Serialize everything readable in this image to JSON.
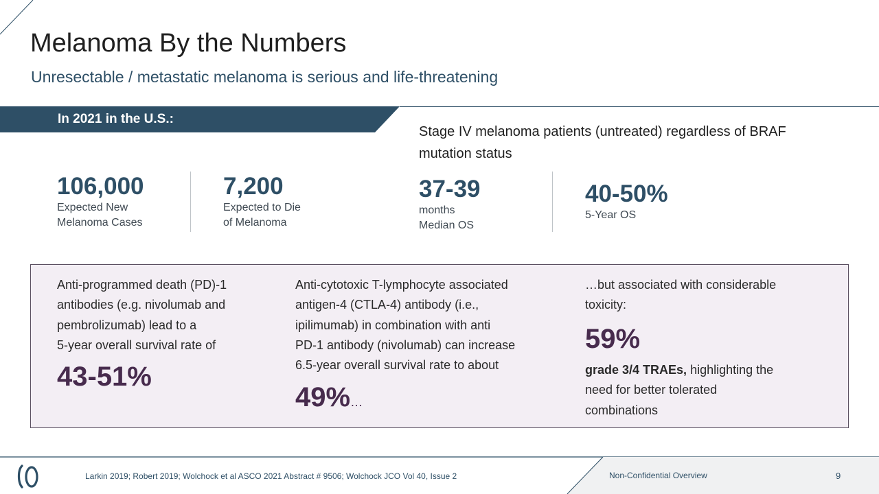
{
  "header": {
    "title": "Melanoma By the Numbers",
    "subtitle": "Unresectable / metastatic melanoma is serious and life-threatening"
  },
  "banner": {
    "label": "In 2021 in the U.S.:"
  },
  "stage_iv": {
    "heading": "Stage IV melanoma patients (untreated) regardless of BRAF mutation status"
  },
  "stats": [
    {
      "value": "106,000",
      "label_line1": "Expected New",
      "label_line2": "Melanoma Cases"
    },
    {
      "value": "7,200",
      "label_line1": "Expected to Die",
      "label_line2": "of Melanoma"
    },
    {
      "value": "37-39",
      "label_line1": "months",
      "label_line2": "Median OS"
    },
    {
      "value": "40-50%",
      "label_line1": "5-Year OS"
    }
  ],
  "panel": {
    "col1": {
      "line1": "Anti-programmed death (PD)-1",
      "line2": "antibodies (e.g. nivolumab and",
      "line3": "pembrolizumab) lead to a",
      "line4": "5-year overall survival rate of",
      "highlight": "43-51%"
    },
    "col2": {
      "line1": "Anti-cytotoxic T-lymphocyte associated",
      "line2": "antigen-4 (CTLA-4) antibody (i.e.,",
      "line3": "ipilimumab) in combination with anti",
      "line4": "PD-1 antibody (nivolumab) can increase",
      "line5": "6.5-year overall survival rate to about",
      "highlight": "49%",
      "suffix": "…"
    },
    "col3": {
      "line1": "…but associated with considerable",
      "line2": "toxicity:",
      "highlight": "59%",
      "bold_text": "grade 3/4 TRAEs,",
      "rest1": " highlighting the",
      "line4": "need for better tolerated",
      "line5": "combinations"
    }
  },
  "footer": {
    "citations": "Larkin 2019; Robert 2019; Wolchock et al ASCO 2021 Abstract # 9506; Wolchock JCO Vol 40, Issue 2",
    "confidentiality": "Non-Confidential Overview",
    "page_number": "9"
  },
  "colors": {
    "navy": "#2e4f66",
    "purple": "#472b4d",
    "panel_bg": "#f3eef4"
  }
}
